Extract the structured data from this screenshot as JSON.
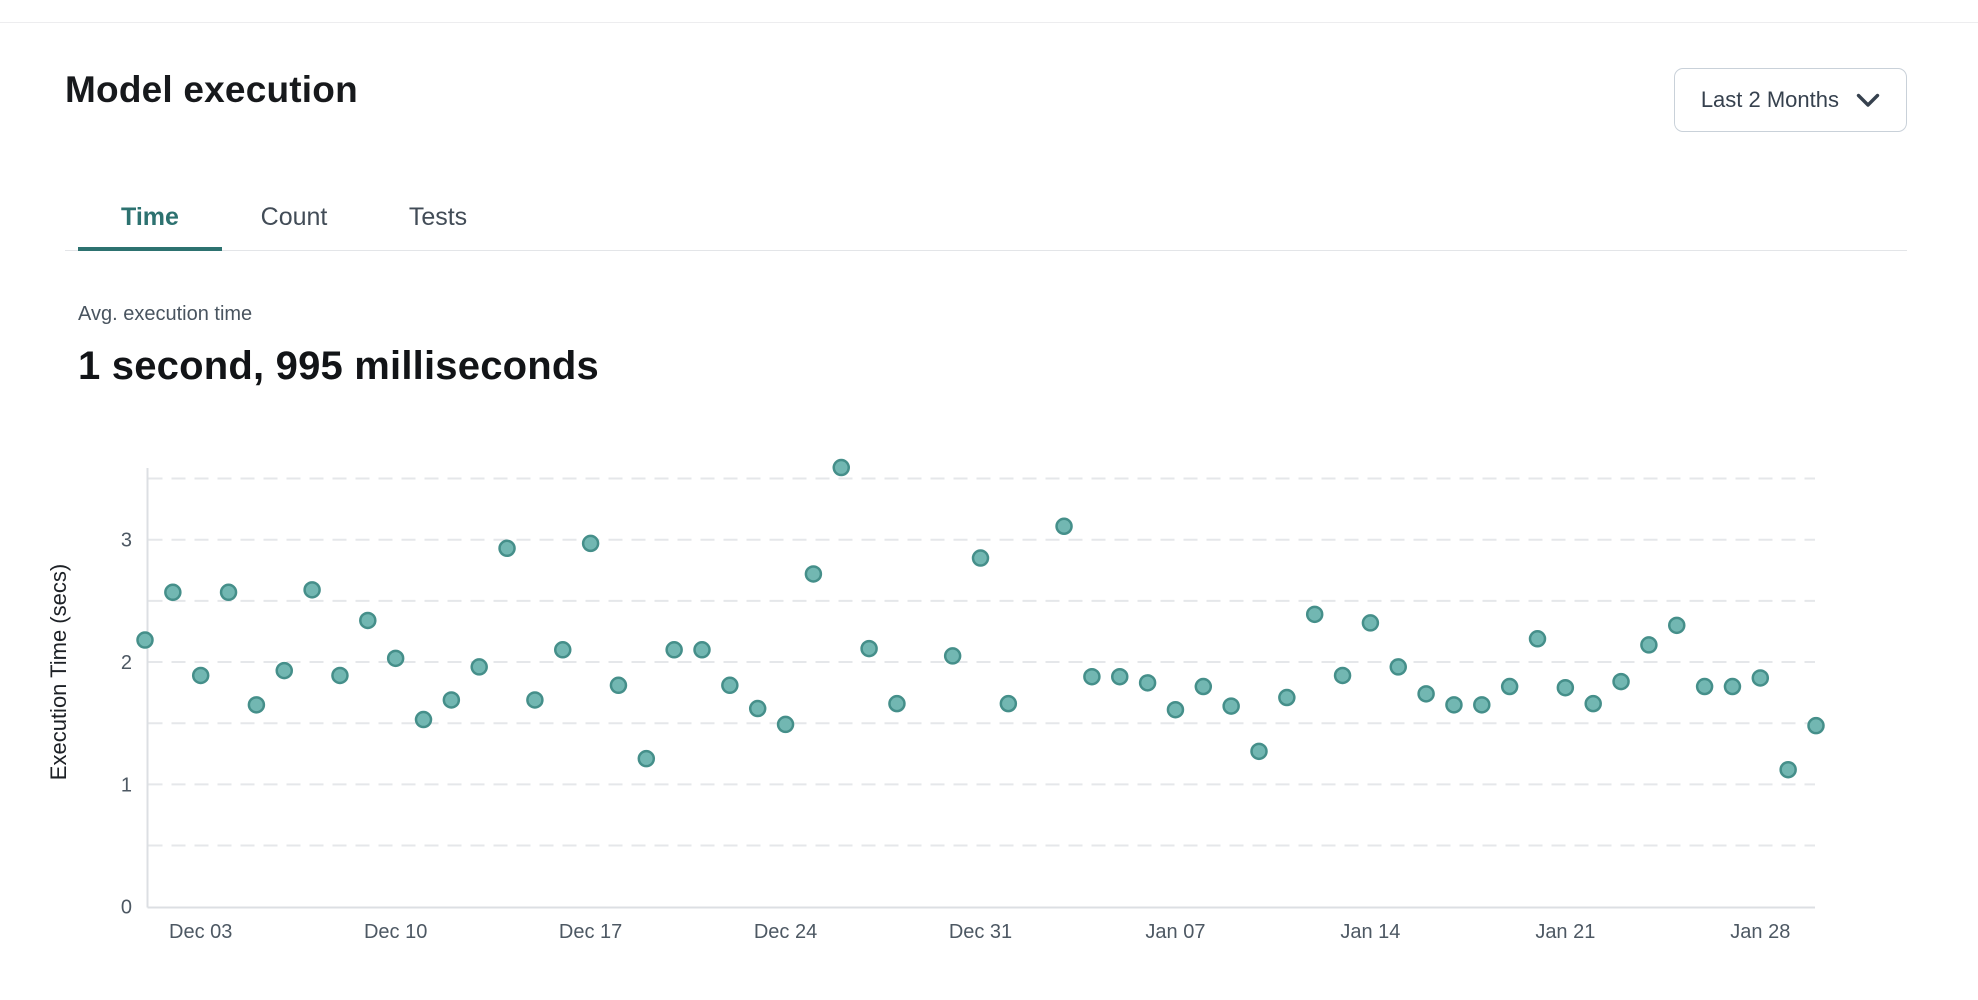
{
  "header": {
    "title": "Model execution",
    "range_selector": {
      "label": "Last 2 Months",
      "icon": "chevron-down-icon"
    }
  },
  "tabs": [
    {
      "label": "Time",
      "active": true
    },
    {
      "label": "Count",
      "active": false
    },
    {
      "label": "Tests",
      "active": false
    }
  ],
  "summary": {
    "label": "Avg. execution time",
    "value": "1 second, 995 milliseconds"
  },
  "colors": {
    "accent_teal": "#2d7270",
    "point_fill": "#72b7b2",
    "point_stroke": "#458f8a",
    "grid_line": "#e5e7ea",
    "axis_line": "#dcdfe3",
    "tick_text": "#4d5863",
    "axis_label_text": "#1d2126"
  },
  "chart_data": {
    "type": "scatter",
    "title": "",
    "xlabel": "",
    "ylabel": "Execution Time (secs)",
    "ylim": [
      0,
      3.66
    ],
    "y_ticks": [
      0,
      1,
      2,
      3
    ],
    "grid": "horizontal dashed every 0.5, legend none",
    "x_ticks": [
      {
        "label": "Dec 03",
        "day": 2
      },
      {
        "label": "Dec 10",
        "day": 9
      },
      {
        "label": "Dec 17",
        "day": 16
      },
      {
        "label": "Dec 24",
        "day": 23
      },
      {
        "label": "Dec 31",
        "day": 30
      },
      {
        "label": "Jan 07",
        "day": 37
      },
      {
        "label": "Jan 14",
        "day": 44
      },
      {
        "label": "Jan 21",
        "day": 51
      },
      {
        "label": "Jan 28",
        "day": 58
      }
    ],
    "points": [
      {
        "date": "Dec 01",
        "day": 0,
        "secs": 2.18
      },
      {
        "date": "Dec 02",
        "day": 1,
        "secs": 2.57
      },
      {
        "date": "Dec 03",
        "day": 2,
        "secs": 1.89
      },
      {
        "date": "Dec 04",
        "day": 3,
        "secs": 2.57
      },
      {
        "date": "Dec 05",
        "day": 4,
        "secs": 1.65
      },
      {
        "date": "Dec 06",
        "day": 5,
        "secs": 1.93
      },
      {
        "date": "Dec 07",
        "day": 6,
        "secs": 2.59
      },
      {
        "date": "Dec 08",
        "day": 7,
        "secs": 1.89
      },
      {
        "date": "Dec 09",
        "day": 8,
        "secs": 2.34
      },
      {
        "date": "Dec 10",
        "day": 9,
        "secs": 2.03
      },
      {
        "date": "Dec 11",
        "day": 10,
        "secs": 1.53
      },
      {
        "date": "Dec 12",
        "day": 11,
        "secs": 1.69
      },
      {
        "date": "Dec 13",
        "day": 12,
        "secs": 1.96
      },
      {
        "date": "Dec 14",
        "day": 13,
        "secs": 2.93
      },
      {
        "date": "Dec 15",
        "day": 14,
        "secs": 1.69
      },
      {
        "date": "Dec 16",
        "day": 15,
        "secs": 2.1
      },
      {
        "date": "Dec 17",
        "day": 16,
        "secs": 2.97
      },
      {
        "date": "Dec 18",
        "day": 17,
        "secs": 1.81
      },
      {
        "date": "Dec 19",
        "day": 18,
        "secs": 1.21
      },
      {
        "date": "Dec 20",
        "day": 19,
        "secs": 2.1
      },
      {
        "date": "Dec 21",
        "day": 20,
        "secs": 2.1
      },
      {
        "date": "Dec 22",
        "day": 21,
        "secs": 1.81
      },
      {
        "date": "Dec 23",
        "day": 22,
        "secs": 1.62
      },
      {
        "date": "Dec 24",
        "day": 23,
        "secs": 1.49
      },
      {
        "date": "Dec 25",
        "day": 24,
        "secs": 2.72
      },
      {
        "date": "Dec 26",
        "day": 25,
        "secs": 3.59
      },
      {
        "date": "Dec 27",
        "day": 26,
        "secs": 2.11
      },
      {
        "date": "Dec 28",
        "day": 27,
        "secs": 1.66
      },
      {
        "date": "Dec 30",
        "day": 29,
        "secs": 2.05
      },
      {
        "date": "Dec 31",
        "day": 30,
        "secs": 2.85
      },
      {
        "date": "Jan 01",
        "day": 31,
        "secs": 1.66
      },
      {
        "date": "Jan 03",
        "day": 33,
        "secs": 3.11
      },
      {
        "date": "Jan 04",
        "day": 34,
        "secs": 1.88
      },
      {
        "date": "Jan 05",
        "day": 35,
        "secs": 1.88
      },
      {
        "date": "Jan 06",
        "day": 36,
        "secs": 1.83
      },
      {
        "date": "Jan 07",
        "day": 37,
        "secs": 1.61
      },
      {
        "date": "Jan 08",
        "day": 38,
        "secs": 1.8
      },
      {
        "date": "Jan 09",
        "day": 39,
        "secs": 1.64
      },
      {
        "date": "Jan 10",
        "day": 40,
        "secs": 1.27
      },
      {
        "date": "Jan 11",
        "day": 41,
        "secs": 1.71
      },
      {
        "date": "Jan 12",
        "day": 42,
        "secs": 2.39
      },
      {
        "date": "Jan 13",
        "day": 43,
        "secs": 1.89
      },
      {
        "date": "Jan 14",
        "day": 44,
        "secs": 2.32
      },
      {
        "date": "Jan 15",
        "day": 45,
        "secs": 1.96
      },
      {
        "date": "Jan 16",
        "day": 46,
        "secs": 1.74
      },
      {
        "date": "Jan 17",
        "day": 47,
        "secs": 1.65
      },
      {
        "date": "Jan 18",
        "day": 48,
        "secs": 1.65
      },
      {
        "date": "Jan 19",
        "day": 49,
        "secs": 1.8
      },
      {
        "date": "Jan 20",
        "day": 50,
        "secs": 2.19
      },
      {
        "date": "Jan 21",
        "day": 51,
        "secs": 1.79
      },
      {
        "date": "Jan 22",
        "day": 52,
        "secs": 1.66
      },
      {
        "date": "Jan 23",
        "day": 53,
        "secs": 1.84
      },
      {
        "date": "Jan 24",
        "day": 54,
        "secs": 2.14
      },
      {
        "date": "Jan 25",
        "day": 55,
        "secs": 2.3
      },
      {
        "date": "Jan 26",
        "day": 56,
        "secs": 1.8
      },
      {
        "date": "Jan 27",
        "day": 57,
        "secs": 1.8
      },
      {
        "date": "Jan 28",
        "day": 58,
        "secs": 1.87
      },
      {
        "date": "Jan 29",
        "day": 59,
        "secs": 1.12
      },
      {
        "date": "Jan 30",
        "day": 60,
        "secs": 1.48
      }
    ]
  }
}
